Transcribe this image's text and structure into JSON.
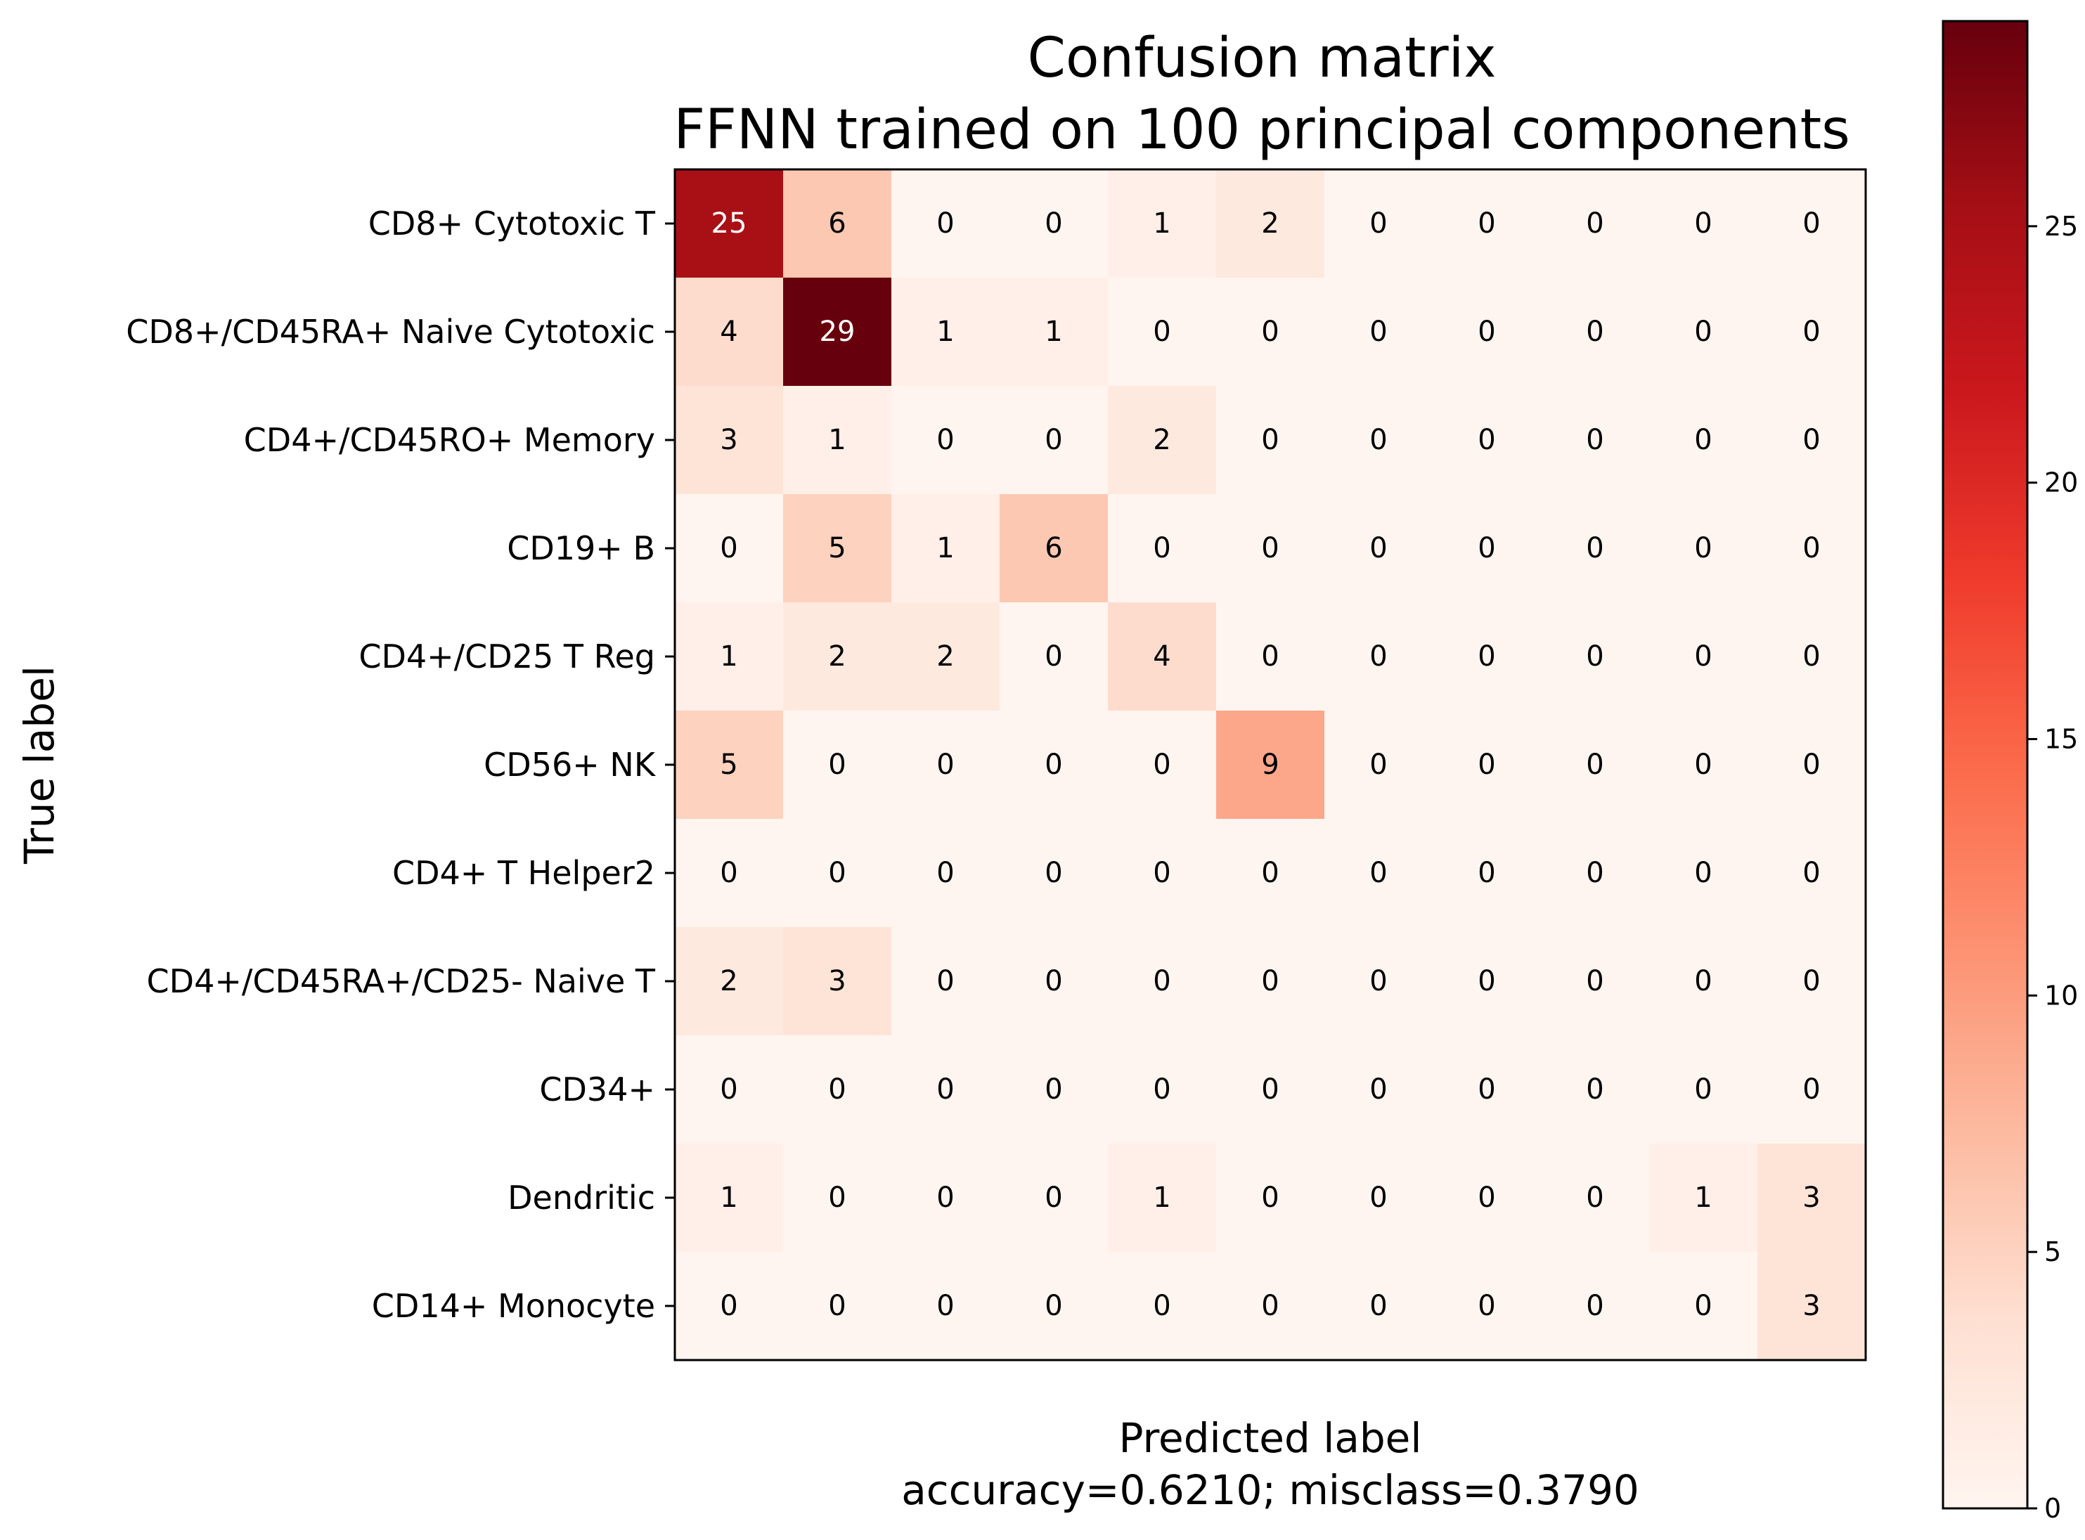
{
  "chart_data": {
    "type": "heatmap",
    "title_lines": [
      "Confusion matrix",
      "FFNN trained on 100 principal components"
    ],
    "ylabel": "True label",
    "xlabel_lines": [
      "Predicted label",
      "accuracy=0.6210; misclass=0.3790"
    ],
    "row_labels": [
      "CD8+ Cytotoxic T",
      "CD8+/CD45RA+ Naive Cytotoxic",
      "CD4+/CD45RO+ Memory",
      "CD19+ B",
      "CD4+/CD25 T Reg",
      "CD56+ NK",
      "CD4+ T Helper2",
      "CD4+/CD45RA+/CD25- Naive T",
      "CD34+",
      "Dendritic",
      "CD14+ Monocyte"
    ],
    "column_labels_shown": false,
    "matrix": [
      [
        25,
        6,
        0,
        0,
        1,
        2,
        0,
        0,
        0,
        0,
        0
      ],
      [
        4,
        29,
        1,
        1,
        0,
        0,
        0,
        0,
        0,
        0,
        0
      ],
      [
        3,
        1,
        0,
        0,
        2,
        0,
        0,
        0,
        0,
        0,
        0
      ],
      [
        0,
        5,
        1,
        6,
        0,
        0,
        0,
        0,
        0,
        0,
        0
      ],
      [
        1,
        2,
        2,
        0,
        4,
        0,
        0,
        0,
        0,
        0,
        0
      ],
      [
        5,
        0,
        0,
        0,
        0,
        9,
        0,
        0,
        0,
        0,
        0
      ],
      [
        0,
        0,
        0,
        0,
        0,
        0,
        0,
        0,
        0,
        0,
        0
      ],
      [
        2,
        3,
        0,
        0,
        0,
        0,
        0,
        0,
        0,
        0,
        0
      ],
      [
        0,
        0,
        0,
        0,
        0,
        0,
        0,
        0,
        0,
        0,
        0
      ],
      [
        1,
        0,
        0,
        0,
        1,
        0,
        0,
        0,
        0,
        1,
        3
      ],
      [
        0,
        0,
        0,
        0,
        0,
        0,
        0,
        0,
        0,
        0,
        3
      ]
    ],
    "colormap": "Reds",
    "colormap_stops": [
      "#fff5f0",
      "#fee0d2",
      "#fcbba1",
      "#fc9272",
      "#fb6a4a",
      "#ef3b2c",
      "#cb181d",
      "#a50f15",
      "#67000d"
    ],
    "text_threshold": 14.5,
    "text_color_dark": "#000000",
    "text_color_light": "#ffffff",
    "colorbar": {
      "range": [
        0,
        29
      ],
      "ticks": [
        0,
        5,
        10,
        15,
        20,
        25
      ]
    }
  }
}
